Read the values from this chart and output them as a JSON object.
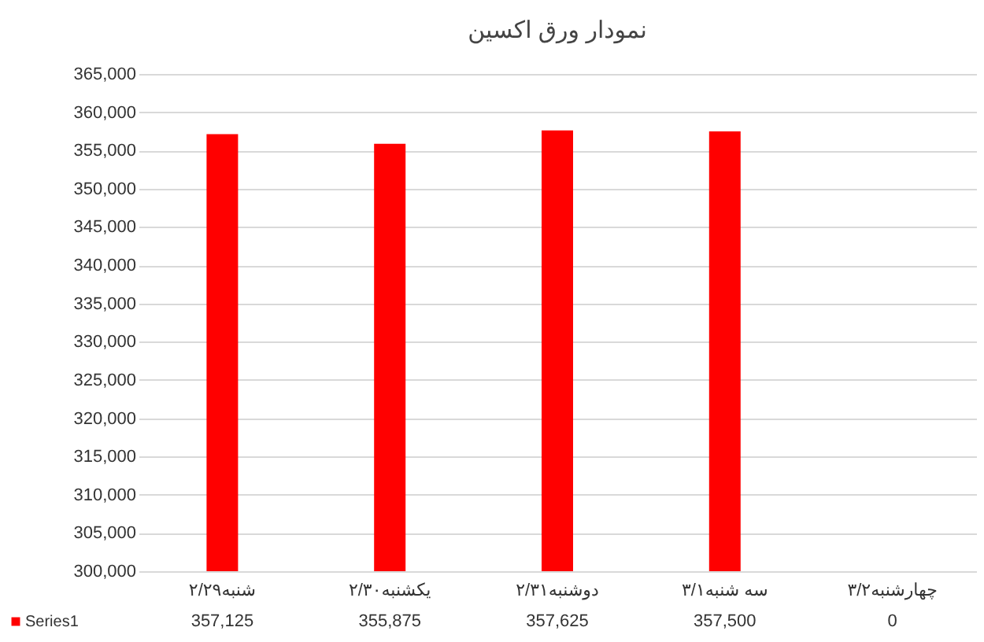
{
  "chart_data": {
    "type": "bar",
    "title": "نمودار ورق اکسین",
    "categories": [
      "شنبه۲/۲۹",
      "یکشنبه۲/۳۰",
      "دوشنبه۲/۳۱",
      "سه شنبه۳/۱",
      "چهارشنبه۳/۲"
    ],
    "series": [
      {
        "name": "Series1",
        "color": "#ff0000",
        "values": [
          357125,
          355875,
          357625,
          357500,
          null
        ],
        "value_labels": [
          "357,125",
          "355,875",
          "357,625",
          "357,500",
          "0"
        ]
      }
    ],
    "ylim": [
      300000,
      365000
    ],
    "yticks": [
      {
        "value": 300000,
        "label": "300,000"
      },
      {
        "value": 305000,
        "label": "305,000"
      },
      {
        "value": 310000,
        "label": "310,000"
      },
      {
        "value": 315000,
        "label": "315,000"
      },
      {
        "value": 320000,
        "label": "320,000"
      },
      {
        "value": 325000,
        "label": "325,000"
      },
      {
        "value": 330000,
        "label": "330,000"
      },
      {
        "value": 335000,
        "label": "335,000"
      },
      {
        "value": 340000,
        "label": "340,000"
      },
      {
        "value": 345000,
        "label": "345,000"
      },
      {
        "value": 350000,
        "label": "350,000"
      },
      {
        "value": 355000,
        "label": "355,000"
      },
      {
        "value": 360000,
        "label": "360,000"
      },
      {
        "value": 365000,
        "label": "365,000"
      }
    ],
    "grid": "y",
    "legend": "bottom"
  }
}
